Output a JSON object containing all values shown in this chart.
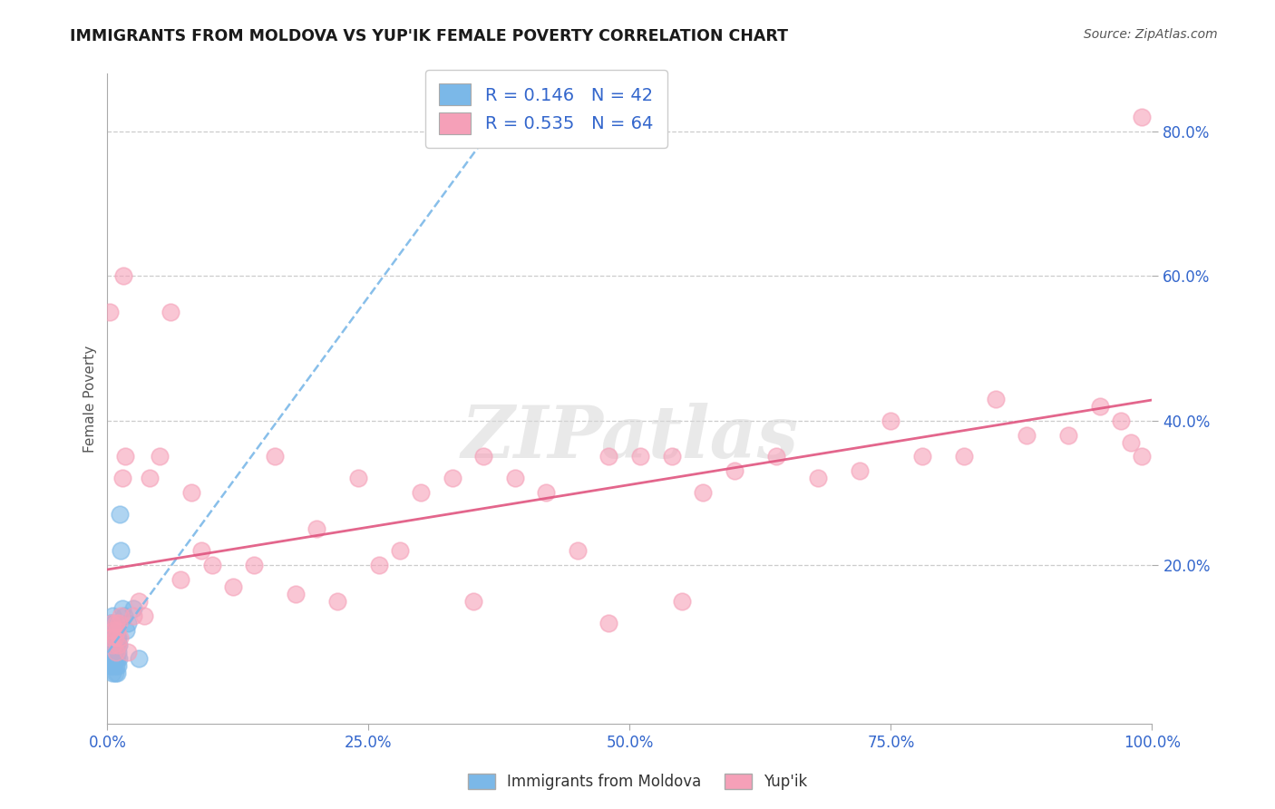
{
  "title": "IMMIGRANTS FROM MOLDOVA VS YUP'IK FEMALE POVERTY CORRELATION CHART",
  "source": "Source: ZipAtlas.com",
  "ylabel": "Female Poverty",
  "legend_label_1": "Immigrants from Moldova",
  "legend_label_2": "Yup'ik",
  "r1": 0.146,
  "n1": 42,
  "r2": 0.535,
  "n2": 64,
  "color1": "#7bb8e8",
  "color2": "#f5a0b8",
  "trendline1_color": "#7bb8e8",
  "trendline2_color": "#e05580",
  "xlim": [
    0.0,
    1.0
  ],
  "ylim": [
    -0.02,
    0.88
  ],
  "xticks": [
    0.0,
    0.25,
    0.5,
    0.75,
    1.0
  ],
  "yticks": [
    0.2,
    0.4,
    0.6,
    0.8
  ],
  "watermark": "ZIPatlas",
  "blue_scatter_x": [
    0.002,
    0.003,
    0.003,
    0.003,
    0.003,
    0.004,
    0.004,
    0.004,
    0.005,
    0.005,
    0.005,
    0.005,
    0.006,
    0.006,
    0.006,
    0.006,
    0.006,
    0.007,
    0.007,
    0.007,
    0.007,
    0.007,
    0.008,
    0.008,
    0.008,
    0.008,
    0.009,
    0.009,
    0.009,
    0.01,
    0.01,
    0.01,
    0.011,
    0.011,
    0.012,
    0.013,
    0.014,
    0.016,
    0.018,
    0.02,
    0.025,
    0.03
  ],
  "blue_scatter_y": [
    0.1,
    0.12,
    0.09,
    0.07,
    0.06,
    0.11,
    0.08,
    0.06,
    0.13,
    0.1,
    0.07,
    0.05,
    0.12,
    0.1,
    0.09,
    0.08,
    0.06,
    0.11,
    0.09,
    0.08,
    0.07,
    0.05,
    0.1,
    0.09,
    0.08,
    0.06,
    0.09,
    0.07,
    0.05,
    0.1,
    0.08,
    0.06,
    0.09,
    0.07,
    0.27,
    0.22,
    0.14,
    0.13,
    0.11,
    0.12,
    0.14,
    0.07
  ],
  "pink_scatter_x": [
    0.002,
    0.003,
    0.004,
    0.005,
    0.006,
    0.007,
    0.008,
    0.008,
    0.009,
    0.01,
    0.011,
    0.012,
    0.013,
    0.014,
    0.015,
    0.017,
    0.02,
    0.025,
    0.03,
    0.035,
    0.04,
    0.05,
    0.06,
    0.07,
    0.08,
    0.09,
    0.1,
    0.12,
    0.14,
    0.16,
    0.18,
    0.2,
    0.22,
    0.24,
    0.26,
    0.28,
    0.3,
    0.33,
    0.36,
    0.39,
    0.42,
    0.45,
    0.48,
    0.51,
    0.54,
    0.57,
    0.6,
    0.64,
    0.68,
    0.72,
    0.75,
    0.78,
    0.82,
    0.85,
    0.88,
    0.92,
    0.95,
    0.97,
    0.98,
    0.99,
    0.55,
    0.35,
    0.48,
    0.99
  ],
  "pink_scatter_y": [
    0.55,
    0.1,
    0.12,
    0.09,
    0.11,
    0.1,
    0.12,
    0.08,
    0.11,
    0.09,
    0.12,
    0.1,
    0.13,
    0.32,
    0.6,
    0.35,
    0.08,
    0.13,
    0.15,
    0.13,
    0.32,
    0.35,
    0.55,
    0.18,
    0.3,
    0.22,
    0.2,
    0.17,
    0.2,
    0.35,
    0.16,
    0.25,
    0.15,
    0.32,
    0.2,
    0.22,
    0.3,
    0.32,
    0.35,
    0.32,
    0.3,
    0.22,
    0.35,
    0.35,
    0.35,
    0.3,
    0.33,
    0.35,
    0.32,
    0.33,
    0.4,
    0.35,
    0.35,
    0.43,
    0.38,
    0.38,
    0.42,
    0.4,
    0.37,
    0.35,
    0.15,
    0.15,
    0.12,
    0.82
  ]
}
